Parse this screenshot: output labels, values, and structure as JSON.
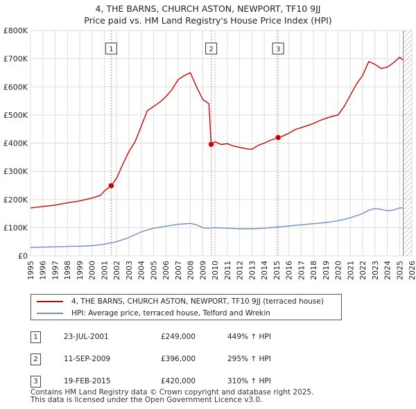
{
  "title_line1": "4, THE BARNS, CHURCH ASTON, NEWPORT, TF10 9JJ",
  "title_line2": "Price paid vs. HM Land Registry's House Price Index (HPI)",
  "colors": {
    "property_line": "#cc0000",
    "hpi_line": "#6b8fc2",
    "grid": "#dddddd",
    "marker_line": "#e08080",
    "hatch": "#999999"
  },
  "chart_data": {
    "type": "line",
    "xlim": [
      1995,
      2026
    ],
    "ylim": [
      0,
      800000
    ],
    "x_ticks": [
      "1995",
      "1996",
      "1997",
      "1998",
      "1999",
      "2000",
      "2001",
      "2002",
      "2003",
      "2004",
      "2005",
      "2006",
      "2007",
      "2008",
      "2009",
      "2010",
      "2011",
      "2012",
      "2013",
      "2014",
      "2015",
      "2016",
      "2017",
      "2018",
      "2019",
      "2020",
      "2021",
      "2022",
      "2023",
      "2024",
      "2025",
      "2026"
    ],
    "y_ticks": [
      {
        "value": 0,
        "label": "£0"
      },
      {
        "value": 100000,
        "label": "£100K"
      },
      {
        "value": 200000,
        "label": "£200K"
      },
      {
        "value": 300000,
        "label": "£300K"
      },
      {
        "value": 400000,
        "label": "£400K"
      },
      {
        "value": 500000,
        "label": "£500K"
      },
      {
        "value": 600000,
        "label": "£600K"
      },
      {
        "value": 700000,
        "label": "£700K"
      },
      {
        "value": 800000,
        "label": "£800K"
      }
    ],
    "series": [
      {
        "name": "4, THE BARNS, CHURCH ASTON, NEWPORT, TF10 9JJ (terraced house)",
        "color": "#cc0000",
        "x": [
          1995.0,
          1996.0,
          1997.0,
          1998.0,
          1999.0,
          2000.0,
          2000.7,
          2001.0,
          2001.56,
          2002.0,
          2002.5,
          2003.0,
          2003.5,
          2004.0,
          2004.5,
          2005.0,
          2005.5,
          2006.0,
          2006.5,
          2007.0,
          2007.5,
          2008.0,
          2008.5,
          2009.0,
          2009.5,
          2009.69,
          2010.0,
          2010.5,
          2011.0,
          2011.5,
          2012.0,
          2012.5,
          2013.0,
          2013.5,
          2014.0,
          2014.5,
          2015.13,
          2015.5,
          2016.0,
          2016.5,
          2017.0,
          2017.5,
          2018.0,
          2018.5,
          2019.0,
          2019.5,
          2020.0,
          2020.5,
          2021.0,
          2021.5,
          2022.0,
          2022.5,
          2023.0,
          2023.5,
          2024.0,
          2024.5,
          2025.0,
          2025.3
        ],
        "y": [
          170000,
          175000,
          180000,
          188000,
          195000,
          205000,
          215000,
          230000,
          249000,
          275000,
          325000,
          370000,
          405000,
          460000,
          515000,
          530000,
          545000,
          565000,
          590000,
          625000,
          640000,
          650000,
          600000,
          555000,
          540000,
          396000,
          405000,
          395000,
          398000,
          390000,
          385000,
          380000,
          378000,
          392000,
          400000,
          410000,
          420000,
          425000,
          435000,
          448000,
          455000,
          462000,
          470000,
          480000,
          488000,
          495000,
          500000,
          530000,
          570000,
          610000,
          640000,
          690000,
          680000,
          665000,
          670000,
          685000,
          705000,
          695000
        ]
      },
      {
        "name": "HPI: Average price, terraced house, Telford and Wrekin",
        "color": "#6b8fc2",
        "x": [
          1995.0,
          1996.0,
          1997.0,
          1998.0,
          1999.0,
          2000.0,
          2001.0,
          2002.0,
          2003.0,
          2004.0,
          2005.0,
          2006.0,
          2007.0,
          2008.0,
          2008.5,
          2009.0,
          2009.5,
          2010.0,
          2011.0,
          2012.0,
          2013.0,
          2014.0,
          2015.0,
          2016.0,
          2017.0,
          2018.0,
          2019.0,
          2020.0,
          2021.0,
          2022.0,
          2022.5,
          2023.0,
          2023.5,
          2024.0,
          2024.5,
          2025.0,
          2025.3
        ],
        "y": [
          30000,
          31000,
          32000,
          33000,
          34000,
          36000,
          41000,
          50000,
          65000,
          85000,
          98000,
          105000,
          112000,
          115000,
          110000,
          100000,
          98000,
          100000,
          98000,
          96000,
          96000,
          98000,
          102000,
          106000,
          110000,
          114000,
          118000,
          124000,
          135000,
          150000,
          162000,
          168000,
          165000,
          160000,
          162000,
          170000,
          170000
        ]
      }
    ],
    "sale_markers": [
      {
        "label": "1",
        "x": 2001.56,
        "y": 249000
      },
      {
        "label": "2",
        "x": 2009.69,
        "y": 396000
      },
      {
        "label": "3",
        "x": 2015.13,
        "y": 420000
      }
    ],
    "hatch_from": 2025.3
  },
  "legend": {
    "property": "4, THE BARNS, CHURCH ASTON, NEWPORT, TF10 9JJ (terraced house)",
    "hpi": "HPI: Average price, terraced house, Telford and Wrekin"
  },
  "sales": [
    {
      "num": "1",
      "date": "23-JUL-2001",
      "price": "£249,000",
      "hpi": "449% ↑ HPI"
    },
    {
      "num": "2",
      "date": "11-SEP-2009",
      "price": "£396,000",
      "hpi": "295% ↑ HPI"
    },
    {
      "num": "3",
      "date": "19-FEB-2015",
      "price": "£420,000",
      "hpi": "310% ↑ HPI"
    }
  ],
  "footer_line1": "Contains HM Land Registry data © Crown copyright and database right 2025.",
  "footer_line2": "This data is licensed under the Open Government Licence v3.0."
}
